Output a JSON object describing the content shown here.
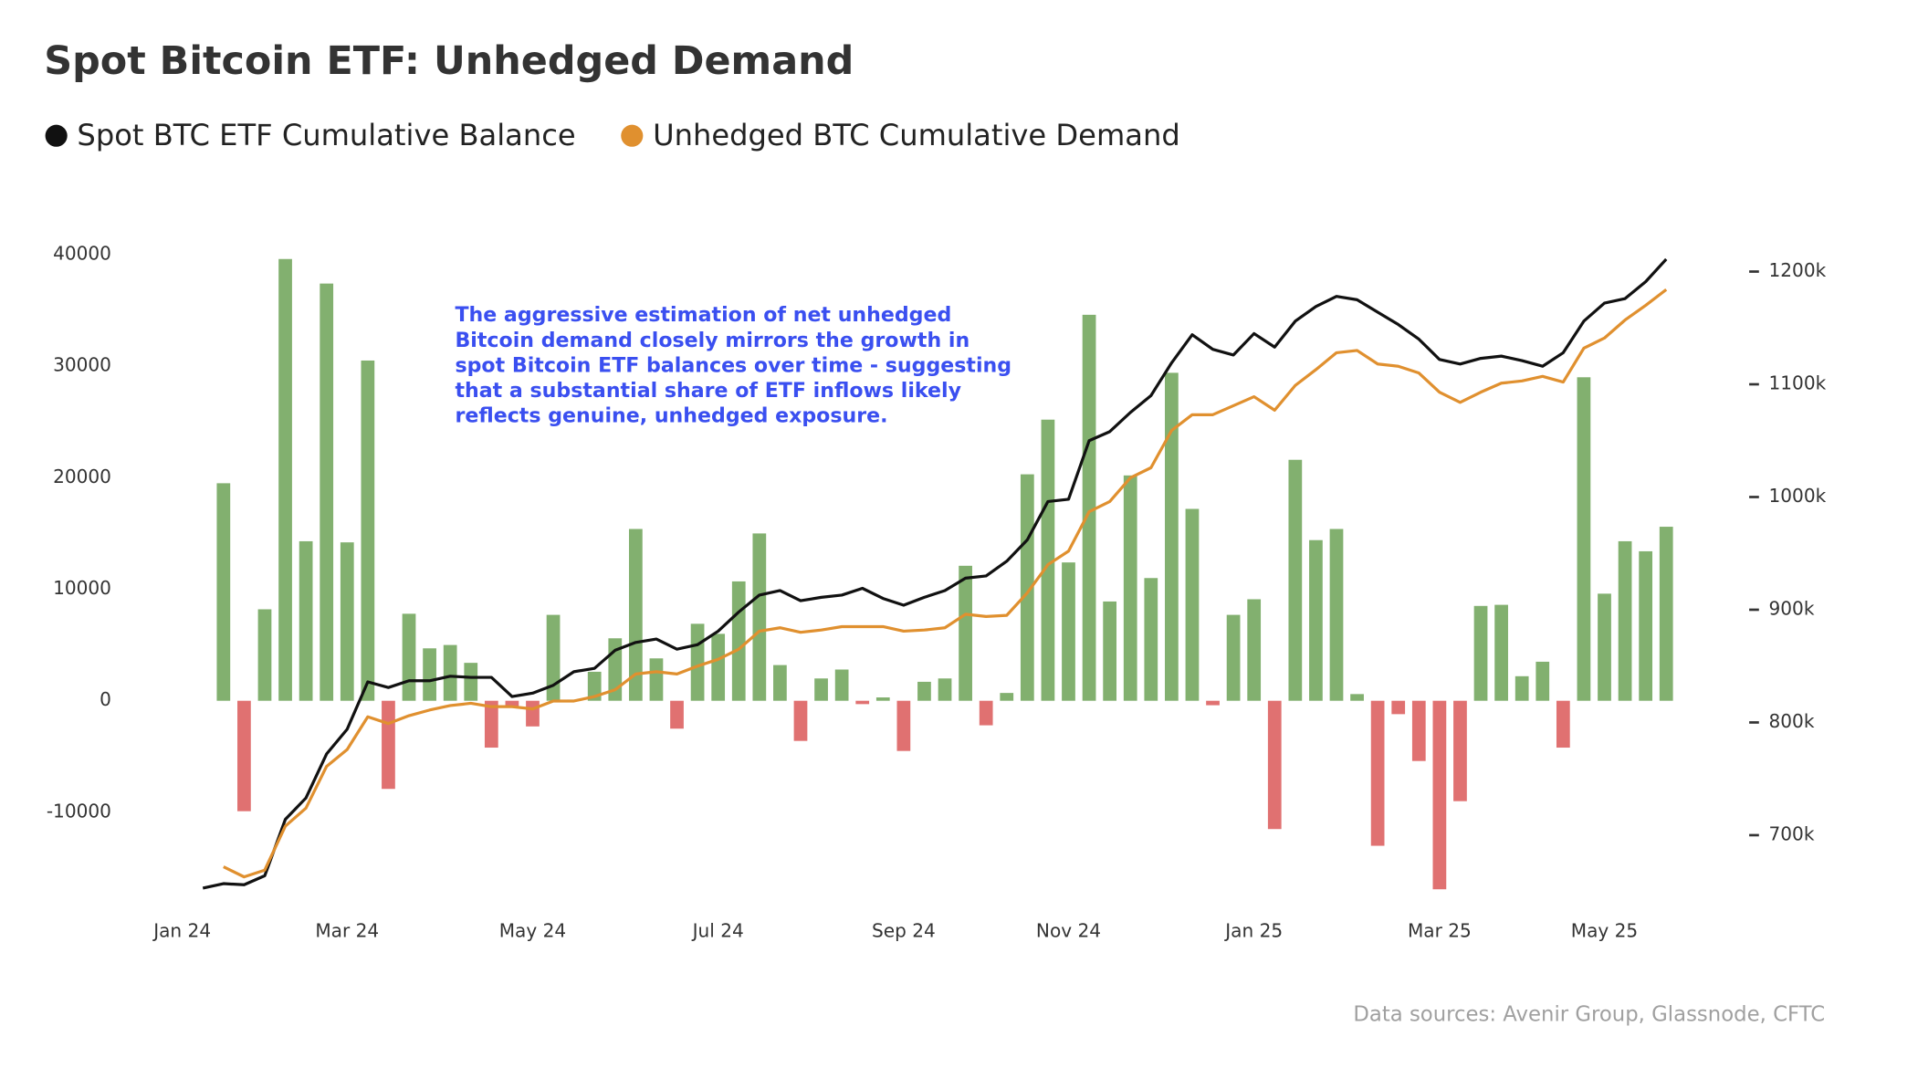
{
  "chart_data": {
    "type": "combo",
    "title": "Spot Bitcoin ETF: Unhedged Demand",
    "annotation": [
      "The aggressive estimation of net unhedged",
      "Bitcoin demand closely mirrors the growth in",
      "spot Bitcoin ETF balances over time - suggesting",
      "that a substantial share of ETF inflows likely",
      "reflects genuine, unhedged exposure."
    ],
    "source": "Data sources: Avenir Group, Glassnode, CFTC",
    "categories": [
      "Jan 24",
      null,
      null,
      null,
      null,
      null,
      null,
      null,
      "Mar 24",
      null,
      null,
      null,
      null,
      null,
      null,
      null,
      null,
      "May 24",
      null,
      null,
      null,
      null,
      null,
      null,
      null,
      null,
      "Jul 24",
      null,
      null,
      null,
      null,
      null,
      null,
      null,
      null,
      "Sep 24",
      null,
      null,
      null,
      null,
      null,
      null,
      null,
      "Nov 24",
      null,
      null,
      null,
      null,
      null,
      null,
      null,
      null,
      "Jan 25",
      null,
      null,
      null,
      null,
      null,
      null,
      null,
      null,
      "Mar 25",
      null,
      null,
      null,
      null,
      null,
      null,
      null,
      "May 25",
      null,
      null,
      null
    ],
    "bar_values": [
      null,
      null,
      19500,
      -9900,
      8200,
      39600,
      14300,
      37400,
      14200,
      30500,
      -7900,
      7800,
      4700,
      5000,
      3400,
      -4200,
      -500,
      -2300,
      7700,
      100,
      2600,
      5600,
      15400,
      3800,
      -2500,
      6900,
      6000,
      10700,
      15000,
      3200,
      -3600,
      2000,
      2800,
      -300,
      300,
      -4500,
      1700,
      2000,
      12100,
      -2200,
      700,
      20300,
      25200,
      12400,
      34600,
      8900,
      20200,
      11000,
      29400,
      17200,
      -400,
      7700,
      9100,
      -11500,
      21600,
      14400,
      15400,
      600,
      -13000,
      -1200,
      -5400,
      -16900,
      -9000,
      8500,
      8600,
      2200,
      3500,
      -4200,
      29000,
      9600,
      14300,
      13400,
      15600
    ],
    "positive_color": "#82b06f",
    "negative_color": "#e07171",
    "series": [
      {
        "name": "Spot BTC ETF Cumulative Balance",
        "color": "#111111",
        "axis": "y2",
        "values": [
          null,
          653000,
          657000,
          656000,
          664000,
          714000,
          733000,
          772000,
          794000,
          836000,
          831000,
          837000,
          837000,
          841000,
          840000,
          840000,
          823000,
          826000,
          833000,
          845000,
          848000,
          864000,
          871000,
          874000,
          865000,
          869000,
          881000,
          898000,
          913000,
          917000,
          908000,
          911000,
          913000,
          919000,
          910000,
          904000,
          911000,
          917000,
          928000,
          930000,
          943000,
          962000,
          996000,
          998000,
          1050000,
          1058000,
          1075000,
          1090000,
          1119000,
          1144000,
          1131000,
          1126000,
          1145000,
          1133000,
          1156000,
          1169000,
          1178000,
          1175000,
          1164000,
          1153000,
          1140000,
          1122000,
          1118000,
          1123000,
          1125000,
          1121000,
          1116000,
          1128000,
          1156000,
          1172000,
          1176000,
          1191000,
          1211000
        ]
      },
      {
        "name": "Unhedged BTC Cumulative Demand",
        "color": "#e0902f",
        "axis": "y2",
        "values": [
          null,
          null,
          672000,
          663000,
          669000,
          708000,
          724000,
          761000,
          776000,
          805000,
          799000,
          806000,
          811000,
          815000,
          817000,
          814000,
          814000,
          812000,
          819000,
          819000,
          823000,
          829000,
          843000,
          845000,
          843000,
          850000,
          856000,
          865000,
          881000,
          884000,
          880000,
          882000,
          885000,
          885000,
          885000,
          881000,
          882000,
          884000,
          896000,
          894000,
          895000,
          915000,
          940000,
          952000,
          987000,
          996000,
          1017000,
          1026000,
          1059000,
          1073000,
          1073000,
          1081000,
          1089000,
          1077000,
          1099000,
          1113000,
          1128000,
          1130000,
          1118000,
          1116000,
          1110000,
          1093000,
          1084000,
          1093000,
          1101000,
          1103000,
          1107000,
          1102000,
          1132000,
          1141000,
          1157000,
          1170000,
          1184000
        ]
      }
    ],
    "ylim": [
      -17000,
      41000
    ],
    "yticks": [
      -10000,
      0,
      10000,
      20000,
      30000,
      40000
    ],
    "y2lim": [
      651000,
      1225000
    ],
    "y2ticks": [
      {
        "value": 700000,
        "label": "700k"
      },
      {
        "value": 800000,
        "label": "800k"
      },
      {
        "value": 900000,
        "label": "900k"
      },
      {
        "value": 1000000,
        "label": "1000k"
      },
      {
        "value": 1100000,
        "label": "1100k"
      },
      {
        "value": 1200000,
        "label": "1200k"
      }
    ],
    "grid": false,
    "legend": "top-left"
  }
}
